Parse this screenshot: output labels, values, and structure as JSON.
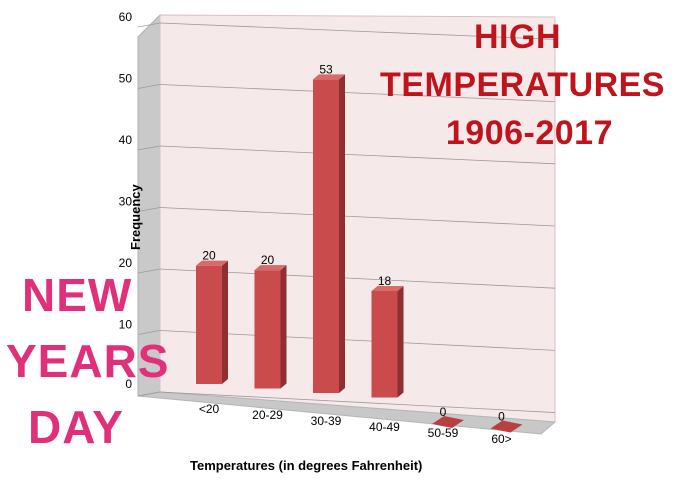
{
  "chart_data": {
    "type": "bar",
    "title_lines": [
      "HIGH",
      "TEMPERATURES",
      "1906-2017"
    ],
    "categories": [
      "<20",
      "20-29",
      "30-39",
      "40-49",
      "50-59",
      "60>"
    ],
    "values": [
      20,
      20,
      53,
      18,
      0,
      0
    ],
    "xlabel": "Temperatures (in degrees Fahrenheit)",
    "ylabel": "Frequency",
    "ylim": [
      0,
      60
    ],
    "yticks": [
      0,
      10,
      20,
      30,
      40,
      50,
      60
    ],
    "grid": true,
    "style": "3d-column",
    "bar_color": "#c94b4b"
  },
  "overlay_text": [
    "NEW",
    "YEARS",
    "DAY"
  ],
  "colors": {
    "title": "#c0141c",
    "overlay": "#e0307a",
    "bar": "#c94b4b"
  }
}
